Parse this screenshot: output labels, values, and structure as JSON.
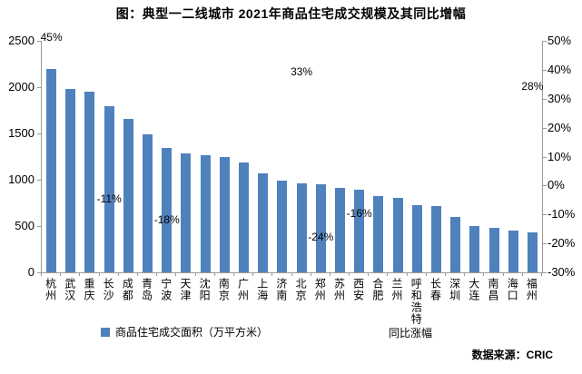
{
  "title": "图：典型一二线城市 2021年商品住宅成交规模及其同比增幅",
  "source": "数据来源：CRIC",
  "legend": [
    {
      "label": "商品住宅成交面积（万平方米）",
      "marker": "square-icon",
      "color": "#4F81BD"
    },
    {
      "label": "同比涨幅",
      "marker": "none"
    }
  ],
  "colors": {
    "bar": "#4F81BD",
    "axis": "#9a9a9a",
    "text": "#000000",
    "background": "#ffffff"
  },
  "chart_data": {
    "type": "bar",
    "title": "图：典型一二线城市 2021年商品住宅成交规模及其同比增幅",
    "categories": [
      "杭州",
      "武汉",
      "重庆",
      "长沙",
      "成都",
      "青岛",
      "宁波",
      "天津",
      "沈阳",
      "南京",
      "广州",
      "上海",
      "济南",
      "北京",
      "郑州",
      "苏州",
      "西安",
      "合肥",
      "兰州",
      "呼和浩特",
      "长春",
      "深圳",
      "大连",
      "南昌",
      "海口",
      "福州"
    ],
    "series": [
      {
        "name": "商品住宅成交面积（万平方米）",
        "type": "bar",
        "axis": "left",
        "values": [
          2200,
          1985,
          1950,
          1795,
          1660,
          1490,
          1340,
          1285,
          1260,
          1250,
          1185,
          1065,
          990,
          960,
          950,
          915,
          895,
          825,
          800,
          725,
          715,
          595,
          505,
          485,
          450,
          430
        ]
      },
      {
        "name": "同比涨幅",
        "type": "labels-only",
        "axis": "right",
        "points": [
          {
            "city": "杭州",
            "index": 0,
            "value": 45,
            "label": "45%"
          },
          {
            "city": "长沙",
            "index": 3,
            "value": -11,
            "label": "-11%"
          },
          {
            "city": "宁波",
            "index": 6,
            "value": -18,
            "label": "-18%"
          },
          {
            "city": "北京",
            "index": 13,
            "value": 33,
            "label": "33%"
          },
          {
            "city": "郑州",
            "index": 14,
            "value": -24,
            "label": "-24%"
          },
          {
            "city": "西安",
            "index": 16,
            "value": -16,
            "label": "-16%"
          },
          {
            "city": "福州",
            "index": 25,
            "value": 28,
            "label": "28%"
          }
        ]
      }
    ],
    "left_axis": {
      "min": 0,
      "max": 2500,
      "step": 500,
      "ticks": [
        "0",
        "500",
        "1000",
        "1500",
        "2000",
        "2500"
      ]
    },
    "right_axis": {
      "min": -30,
      "max": 50,
      "step": 10,
      "ticks": [
        "-30%",
        "-20%",
        "-10%",
        "0%",
        "10%",
        "20%",
        "30%",
        "40%",
        "50%"
      ]
    },
    "grid": false,
    "legend_position": "bottom"
  }
}
